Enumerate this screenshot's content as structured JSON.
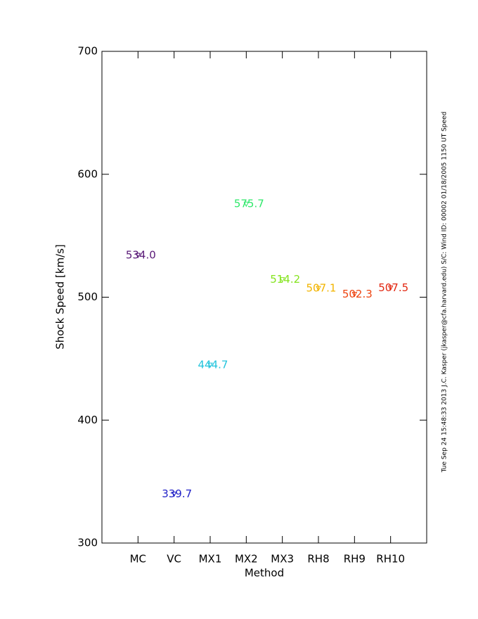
{
  "chart_data": {
    "type": "scatter",
    "x_label": "Method",
    "y_label": "Shock Speed [km/s]",
    "side_note": "Tue Sep 24 15:48:33 2013   J.C. Kasper (jkasper@cfa.harvard.edu)   S/C: Wind ID: 00002 01/18/2005   1150 UT Speed",
    "categories": [
      "MC",
      "VC",
      "MX1",
      "MX2",
      "MX3",
      "RH8",
      "RH9",
      "RH10"
    ],
    "values": [
      534.0,
      339.7,
      444.7,
      575.7,
      514.2,
      507.1,
      502.3,
      507.5
    ],
    "value_labels": [
      "534.0",
      "339.7",
      "444.7",
      "575.7",
      "514.2",
      "507.1",
      "502.3",
      "507.5"
    ],
    "colors": [
      "#5a1a78",
      "#2222c8",
      "#22c4dc",
      "#2ee86a",
      "#84e41e",
      "#f2b400",
      "#ee4410",
      "#e22812"
    ],
    "ylim": [
      300,
      700
    ],
    "yticks": [
      300,
      400,
      500,
      600,
      700
    ]
  }
}
